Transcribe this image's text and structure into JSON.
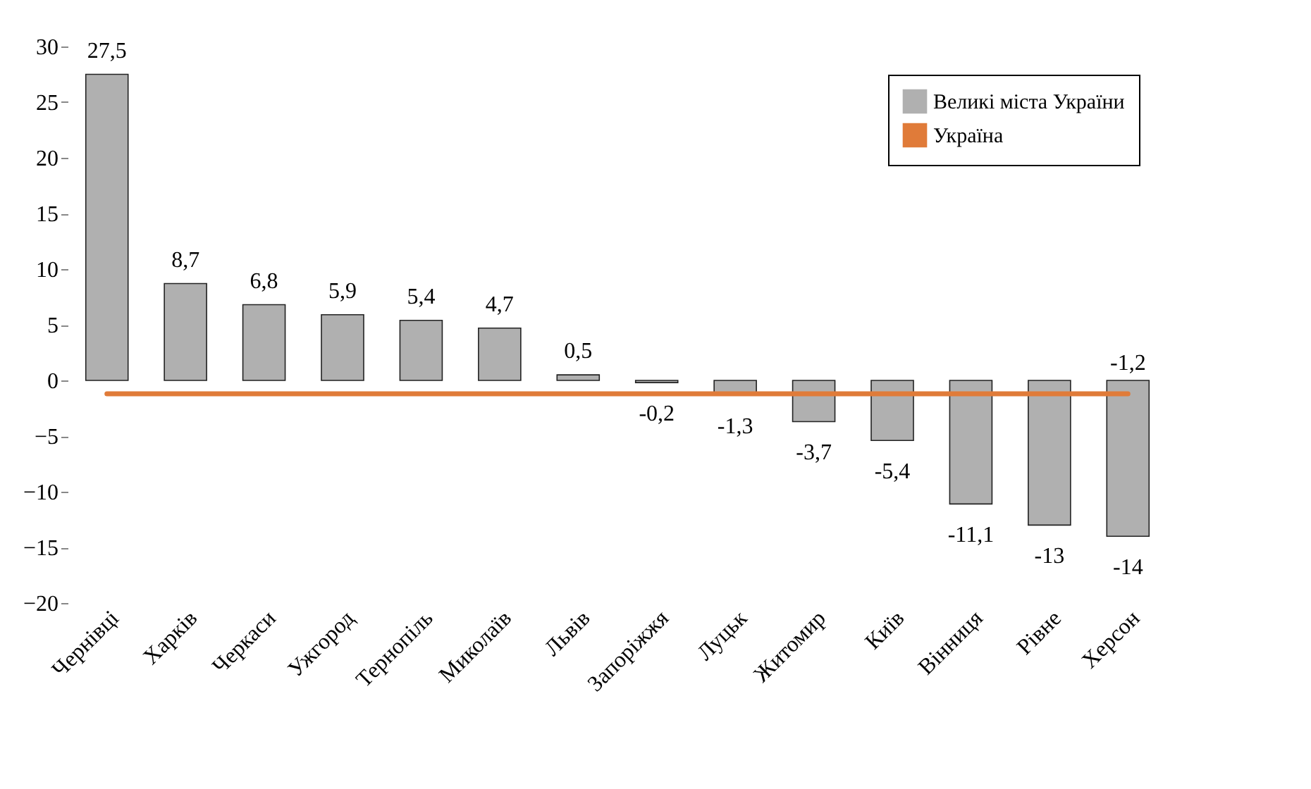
{
  "chart_data": {
    "type": "bar",
    "categories": [
      "Чернівці",
      "Харків",
      "Черкаси",
      "Ужгород",
      "Тернопіль",
      "Миколаїв",
      "Львів",
      "Запоріжжя",
      "Луцьк",
      "Житомир",
      "Київ",
      "Вінниця",
      "Рівне",
      "Херсон"
    ],
    "series": [
      {
        "name": "Великі міста України",
        "color": "#b0b0b0",
        "values": [
          27.5,
          8.7,
          6.8,
          5.9,
          5.4,
          4.7,
          0.5,
          -0.2,
          -1.3,
          -3.7,
          -5.4,
          -11.1,
          -13,
          -14
        ],
        "value_labels": [
          "27,5",
          "8,7",
          "6,8",
          "5,9",
          "5,4",
          "4,7",
          "0,5",
          "-0,2",
          "-1,3",
          "-3,7",
          "-5,4",
          "-11,1",
          "-13",
          "-14"
        ]
      },
      {
        "name": "Україна",
        "type": "line",
        "color": "#e07b39",
        "values": [
          -1.2,
          -1.2,
          -1.2,
          -1.2,
          -1.2,
          -1.2,
          -1.2,
          -1.2,
          -1.2,
          -1.2,
          -1.2,
          -1.2,
          -1.2,
          -1.2
        ],
        "value_labels": [
          null,
          null,
          null,
          null,
          null,
          null,
          null,
          null,
          null,
          null,
          null,
          null,
          null,
          "-1,2"
        ]
      }
    ],
    "ylim": [
      -20,
      30
    ],
    "yticks": [
      -20,
      -15,
      -10,
      -5,
      0,
      5,
      10,
      15,
      20,
      25,
      30
    ],
    "grid": false,
    "legend": "top right"
  }
}
